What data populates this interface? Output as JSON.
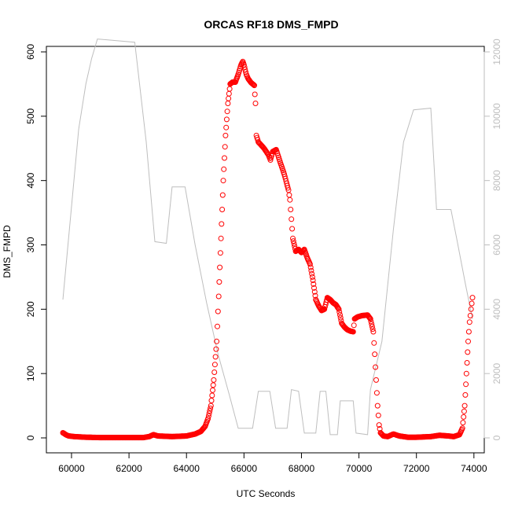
{
  "chart_data": {
    "type": "scatter",
    "title": "ORCAS RF18 DMS_FMPD",
    "xlabel": "UTC Seconds",
    "ylabel": "DMS_FMPD",
    "xlim": [
      59700,
      73950
    ],
    "ylim": [
      0,
      600
    ],
    "y2lim": [
      0,
      12000
    ],
    "x_ticks": [
      60000,
      62000,
      64000,
      66000,
      68000,
      70000,
      72000,
      74000
    ],
    "y_ticks": [
      0,
      100,
      200,
      300,
      400,
      500,
      600
    ],
    "y2_ticks": [
      0,
      2000,
      4000,
      6000,
      8000,
      10000,
      12000
    ],
    "x_tick_labels": [
      "60000",
      "62000",
      "64000",
      "66000",
      "68000",
      "70000",
      "72000",
      "74000"
    ],
    "y_tick_labels": [
      "0",
      "100",
      "200",
      "300",
      "400",
      "500",
      "600"
    ],
    "y2_tick_labels": [
      "0",
      "2000",
      "4000",
      "6000",
      "8000",
      "10000",
      "12000"
    ],
    "grid": false,
    "series": [
      {
        "type": "scatter",
        "axis": "left",
        "color": "#ff0000",
        "marker": "open-circle",
        "points": [
          [
            59700,
            8
          ],
          [
            59800,
            5
          ],
          [
            59900,
            3
          ],
          [
            60100,
            2
          ],
          [
            60500,
            1
          ],
          [
            61000,
            0.5
          ],
          [
            62000,
            0.5
          ],
          [
            62500,
            0.5
          ],
          [
            62700,
            2
          ],
          [
            62850,
            5
          ],
          [
            63000,
            3
          ],
          [
            63500,
            2
          ],
          [
            64000,
            3
          ],
          [
            64300,
            6
          ],
          [
            64500,
            10
          ],
          [
            64650,
            18
          ],
          [
            64750,
            30
          ],
          [
            64850,
            50
          ],
          [
            64950,
            90
          ],
          [
            65050,
            150
          ],
          [
            65120,
            220
          ],
          [
            65200,
            310
          ],
          [
            65280,
            400
          ],
          [
            65360,
            470
          ],
          [
            65440,
            520
          ],
          [
            65520,
            550
          ],
          [
            65600,
            553
          ],
          [
            65700,
            553
          ],
          [
            65800,
            565
          ],
          [
            65900,
            580
          ],
          [
            65960,
            585
          ],
          [
            66000,
            580
          ],
          [
            66080,
            565
          ],
          [
            66150,
            558
          ],
          [
            66250,
            552
          ],
          [
            66360,
            548
          ],
          [
            66400,
            520
          ],
          [
            66430,
            470
          ],
          [
            66500,
            460
          ],
          [
            66700,
            450
          ],
          [
            66850,
            440
          ],
          [
            66920,
            432
          ],
          [
            67000,
            445
          ],
          [
            67120,
            448
          ],
          [
            67250,
            430
          ],
          [
            67400,
            410
          ],
          [
            67550,
            385
          ],
          [
            67600,
            370
          ],
          [
            67650,
            340
          ],
          [
            67700,
            310
          ],
          [
            67800,
            290
          ],
          [
            67900,
            293
          ],
          [
            68000,
            288
          ],
          [
            68100,
            293
          ],
          [
            68200,
            280
          ],
          [
            68300,
            270
          ],
          [
            68400,
            245
          ],
          [
            68500,
            215
          ],
          [
            68600,
            205
          ],
          [
            68700,
            198
          ],
          [
            68800,
            200
          ],
          [
            68900,
            218
          ],
          [
            69000,
            215
          ],
          [
            69100,
            210
          ],
          [
            69200,
            207
          ],
          [
            69300,
            200
          ],
          [
            69400,
            178
          ],
          [
            69500,
            172
          ],
          [
            69600,
            168
          ],
          [
            69700,
            166
          ],
          [
            69800,
            165
          ],
          [
            69850,
            185
          ],
          [
            69950,
            188
          ],
          [
            70100,
            190
          ],
          [
            70300,
            191
          ],
          [
            70400,
            185
          ],
          [
            70500,
            165
          ],
          [
            70550,
            130
          ],
          [
            70600,
            90
          ],
          [
            70650,
            50
          ],
          [
            70700,
            20
          ],
          [
            70750,
            8
          ],
          [
            70850,
            3
          ],
          [
            71000,
            2
          ],
          [
            71200,
            6
          ],
          [
            71400,
            3
          ],
          [
            71700,
            1
          ],
          [
            72000,
            1
          ],
          [
            72500,
            2
          ],
          [
            72800,
            4
          ],
          [
            73100,
            3
          ],
          [
            73300,
            2
          ],
          [
            73500,
            5
          ],
          [
            73600,
            15
          ],
          [
            73680,
            50
          ],
          [
            73740,
            100
          ],
          [
            73800,
            150
          ],
          [
            73850,
            180
          ],
          [
            73900,
            200
          ],
          [
            73950,
            218
          ]
        ]
      },
      {
        "type": "line",
        "axis": "right",
        "color": "#bebebe",
        "points": [
          [
            59700,
            4300
          ],
          [
            60000,
            7200
          ],
          [
            60250,
            9600
          ],
          [
            60500,
            11000
          ],
          [
            60700,
            11800
          ],
          [
            60900,
            12400
          ],
          [
            62200,
            12300
          ],
          [
            62600,
            9200
          ],
          [
            62900,
            6100
          ],
          [
            63300,
            6050
          ],
          [
            63500,
            7800
          ],
          [
            63950,
            7800
          ],
          [
            64300,
            6000
          ],
          [
            64700,
            4200
          ],
          [
            65100,
            2600
          ],
          [
            65500,
            1300
          ],
          [
            65800,
            300
          ],
          [
            66300,
            300
          ],
          [
            66500,
            1450
          ],
          [
            66900,
            1450
          ],
          [
            67100,
            300
          ],
          [
            67500,
            300
          ],
          [
            67650,
            1500
          ],
          [
            67900,
            1450
          ],
          [
            68100,
            150
          ],
          [
            68500,
            150
          ],
          [
            68650,
            1450
          ],
          [
            68850,
            1450
          ],
          [
            69000,
            100
          ],
          [
            69250,
            100
          ],
          [
            69350,
            1150
          ],
          [
            69800,
            1150
          ],
          [
            69900,
            150
          ],
          [
            70300,
            100
          ],
          [
            70400,
            1500
          ],
          [
            70800,
            3000
          ],
          [
            71200,
            6500
          ],
          [
            71550,
            9200
          ],
          [
            71900,
            10200
          ],
          [
            72500,
            10250
          ],
          [
            72700,
            7100
          ],
          [
            72900,
            7100
          ],
          [
            73200,
            7100
          ],
          [
            73400,
            6200
          ],
          [
            73700,
            4800
          ],
          [
            73950,
            3700
          ]
        ]
      }
    ]
  }
}
